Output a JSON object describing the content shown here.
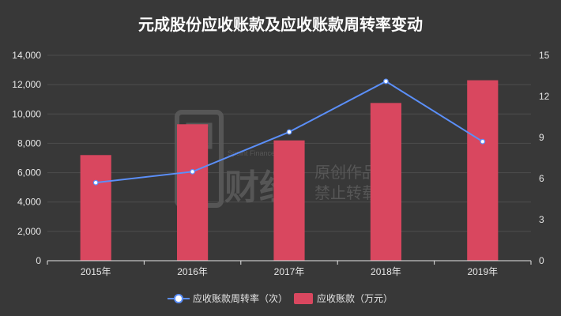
{
  "chart_data": {
    "type": "bar+line",
    "title": "元成股份应收账款及应收账款周转率变动",
    "categories": [
      "2015年",
      "2016年",
      "2017年",
      "2018年",
      "2019年"
    ],
    "series": [
      {
        "name": "应收账款（万元）",
        "type": "bar",
        "axis": "left",
        "color": "#d9475f",
        "values": [
          7200,
          9300,
          8200,
          10750,
          12300
        ]
      },
      {
        "name": "应收账款周转率（次）",
        "type": "line",
        "axis": "right",
        "color": "#5b8ff9",
        "values": [
          5.7,
          6.5,
          9.4,
          13.1,
          8.7
        ]
      }
    ],
    "y_left": {
      "min": 0,
      "max": 14000,
      "ticks": [
        "0",
        "2,000",
        "4,000",
        "6,000",
        "8,000",
        "10,000",
        "12,000",
        "14,000"
      ]
    },
    "y_right": {
      "min": 0,
      "max": 15,
      "ticks": [
        "0",
        "3",
        "6",
        "9",
        "12",
        "15"
      ]
    },
    "grid": true,
    "legend": "bottom-center"
  },
  "watermark": {
    "brand_en": "Spoint Finance",
    "brand_cn": "财经",
    "line1": "原创作品",
    "line2": "禁止转载"
  }
}
